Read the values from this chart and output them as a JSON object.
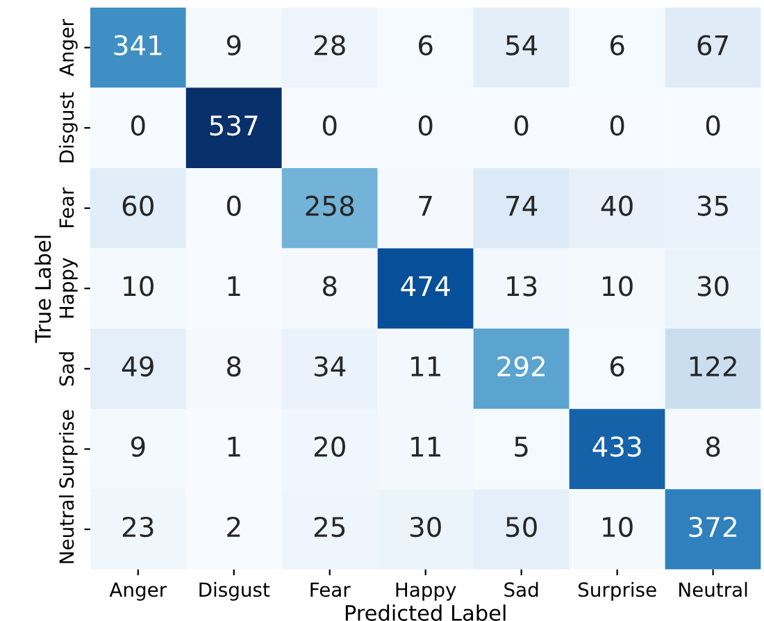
{
  "chart_data": {
    "type": "heatmap",
    "xlabel": "Predicted Label",
    "ylabel": "True Label",
    "categories": [
      "Anger",
      "Disgust",
      "Fear",
      "Happy",
      "Sad",
      "Surprise",
      "Neutral"
    ],
    "y_categories": [
      "Anger",
      "Disgust",
      "Fear",
      "Happy",
      "Sad",
      "Surprise",
      "Neutral"
    ],
    "cells": [
      [
        341,
        9,
        28,
        6,
        54,
        6,
        67
      ],
      [
        0,
        537,
        0,
        0,
        0,
        0,
        0
      ],
      [
        60,
        0,
        258,
        7,
        74,
        40,
        35
      ],
      [
        10,
        1,
        8,
        474,
        13,
        10,
        30
      ],
      [
        49,
        8,
        34,
        11,
        292,
        6,
        122
      ],
      [
        9,
        1,
        20,
        11,
        5,
        433,
        8
      ],
      [
        23,
        2,
        25,
        30,
        50,
        10,
        372
      ]
    ],
    "data_labels": true
  }
}
